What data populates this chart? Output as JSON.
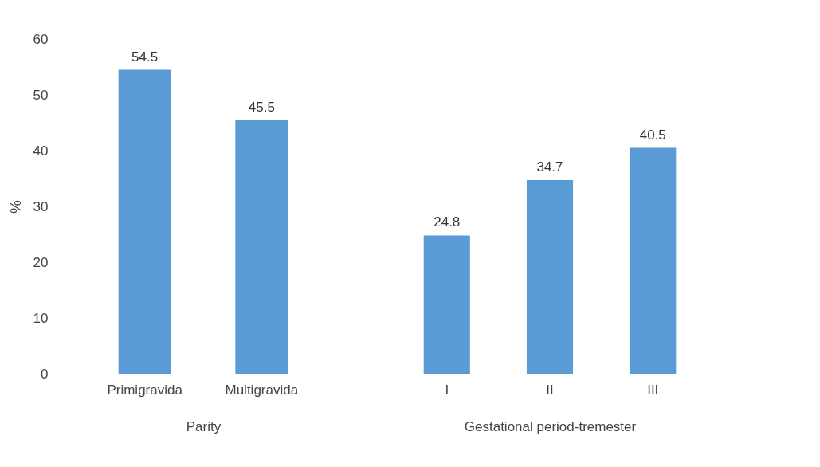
{
  "chart_data": [
    {
      "type": "bar",
      "categories": [
        "Primigravida",
        "Multigravida"
      ],
      "values": [
        54.5,
        45.5
      ],
      "color": "#5b9bd5",
      "xlabel": "Parity",
      "ylabel": "%",
      "ylim": [
        0,
        60
      ],
      "yticks": [
        0,
        10,
        20,
        30,
        40,
        50,
        60
      ],
      "data_labels": true,
      "grid": false
    },
    {
      "type": "bar",
      "categories": [
        "I",
        "II",
        "III"
      ],
      "values": [
        24.8,
        34.7,
        40.5
      ],
      "color": "#5b9bd5",
      "xlabel": "Gestational period-tremester",
      "ylim": [
        0,
        60
      ],
      "yticks": [
        0,
        10,
        20,
        30,
        40,
        50,
        60
      ],
      "data_labels": true,
      "grid": false,
      "tick_labels": "x"
    }
  ]
}
